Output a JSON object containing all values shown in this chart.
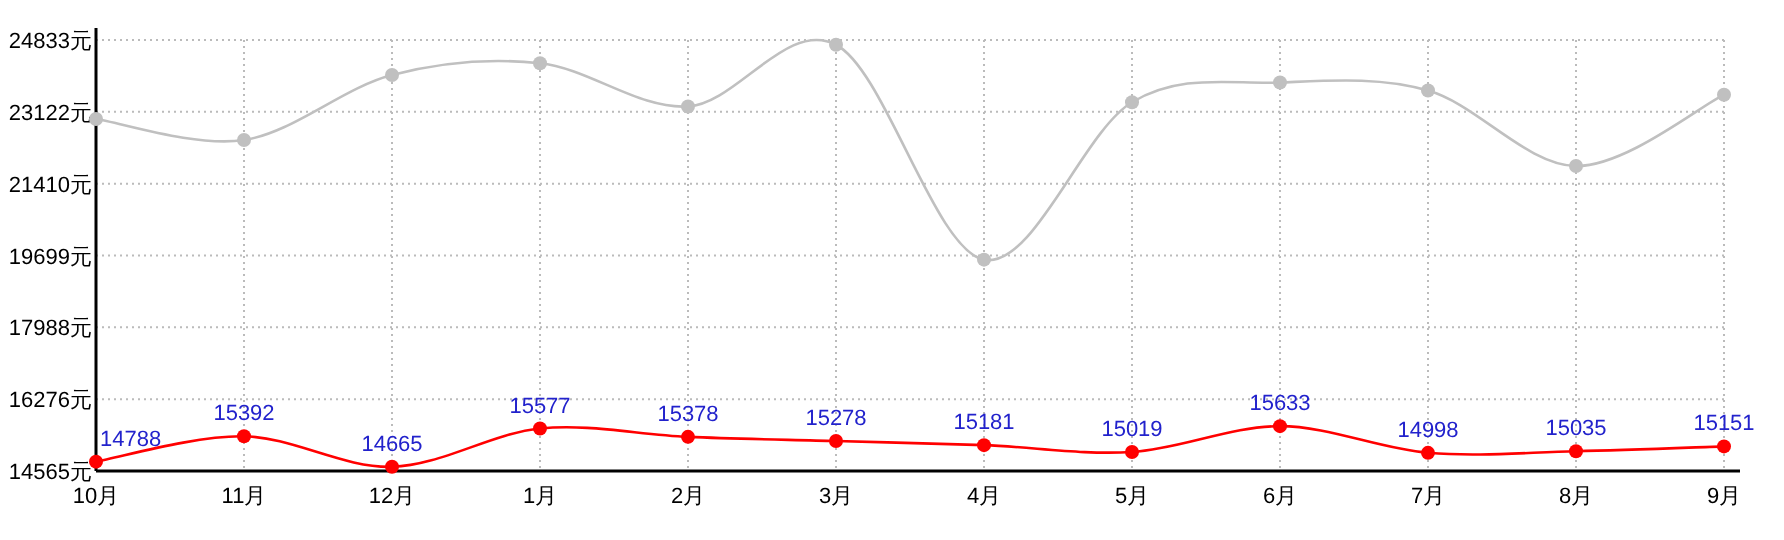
{
  "chart_data": {
    "type": "line",
    "categories": [
      "10月",
      "11月",
      "12月",
      "1月",
      "2月",
      "3月",
      "4月",
      "5月",
      "6月",
      "7月",
      "8月",
      "9月"
    ],
    "series": [
      {
        "color": "#c0c0c0",
        "values": [
          22950,
          22450,
          24000,
          24280,
          23250,
          24720,
          19600,
          23350,
          23820,
          23630,
          21830,
          23530
        ]
      },
      {
        "color": "#ff0000",
        "values": [
          14788,
          15392,
          14665,
          15577,
          15378,
          15278,
          15181,
          15019,
          15633,
          14998,
          15035,
          15151
        ],
        "value_labels": [
          "14788",
          "15392",
          "14665",
          "15577",
          "15378",
          "15278",
          "15181",
          "15019",
          "15633",
          "14998",
          "15035",
          "15151"
        ]
      }
    ],
    "ylim": [
      14565,
      24833
    ],
    "yticks": [
      {
        "value": 14565,
        "label": "14565元"
      },
      {
        "value": 16276,
        "label": "16276元"
      },
      {
        "value": 17988,
        "label": "17988元"
      },
      {
        "value": 19699,
        "label": "19699元"
      },
      {
        "value": 21410,
        "label": "21410元"
      },
      {
        "value": 23122,
        "label": "23122元"
      },
      {
        "value": 24833,
        "label": "24833元"
      }
    ],
    "grid": true,
    "marker": "circle",
    "line_style": "solid"
  }
}
